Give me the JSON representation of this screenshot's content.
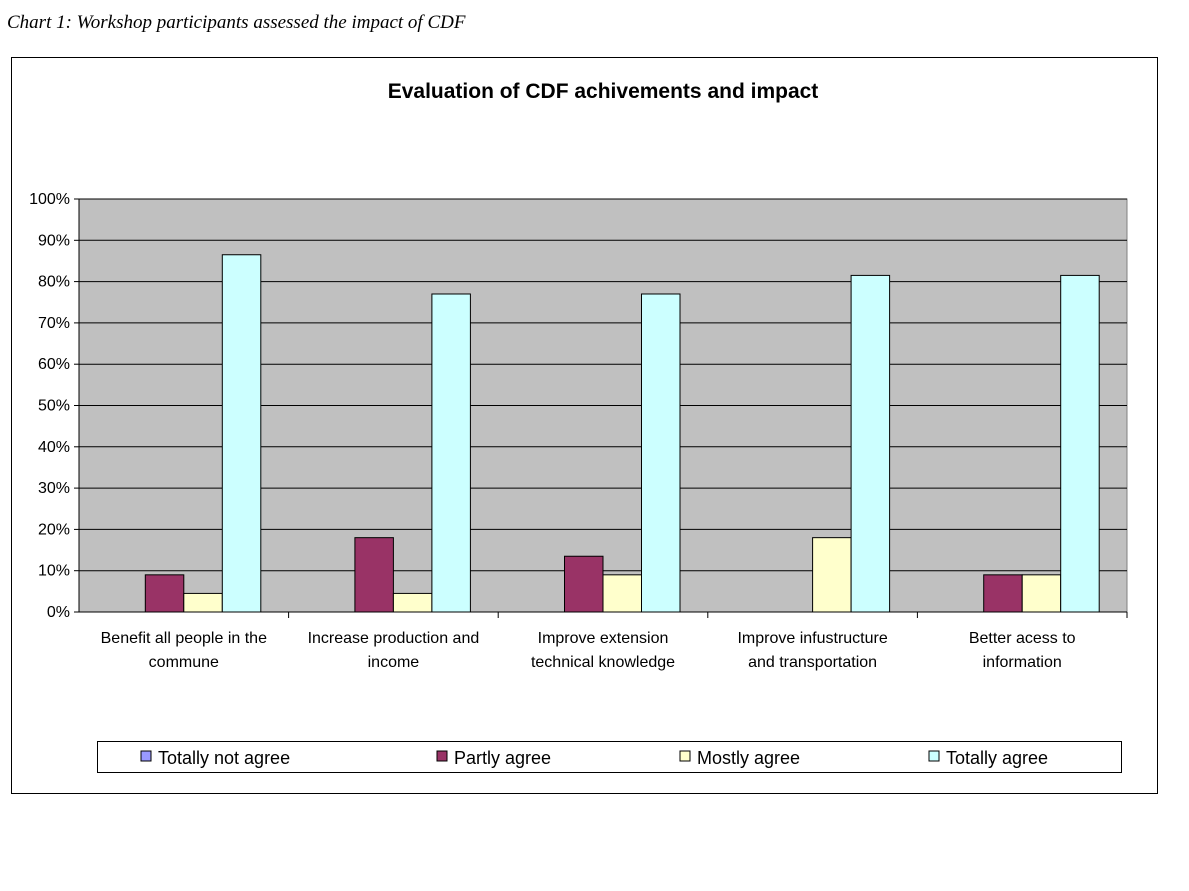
{
  "caption": "Chart 1: Workshop participants assessed the impact of CDF",
  "chart_data": {
    "type": "bar",
    "title": "Evaluation of CDF achivements and impact",
    "xlabel": "",
    "ylabel": "",
    "ylim": [
      0,
      100
    ],
    "y_ticks": [
      "0%",
      "10%",
      "20%",
      "30%",
      "40%",
      "50%",
      "60%",
      "70%",
      "80%",
      "90%",
      "100%"
    ],
    "grid": true,
    "legend_position": "bottom",
    "categories": [
      [
        "Benefit all people in the",
        "commune"
      ],
      [
        "Increase production and",
        "income"
      ],
      [
        "Improve extension",
        "technical knowledge"
      ],
      [
        "Improve infustructure",
        "and transportation"
      ],
      [
        "Better acess to",
        "information"
      ]
    ],
    "series": [
      {
        "name": "Totally not agree",
        "color": "#9999ff",
        "values": [
          0,
          0,
          0,
          0,
          0
        ]
      },
      {
        "name": "Partly agree",
        "color": "#993366",
        "values": [
          9,
          18,
          13.5,
          0,
          9
        ]
      },
      {
        "name": "Mostly agree",
        "color": "#ffffcc",
        "values": [
          4.5,
          4.5,
          9,
          18,
          9
        ]
      },
      {
        "name": "Totally agree",
        "color": "#ccffff",
        "values": [
          86.5,
          77,
          77,
          81.5,
          81.5
        ]
      }
    ],
    "plot_background": "#c0c0c0"
  }
}
